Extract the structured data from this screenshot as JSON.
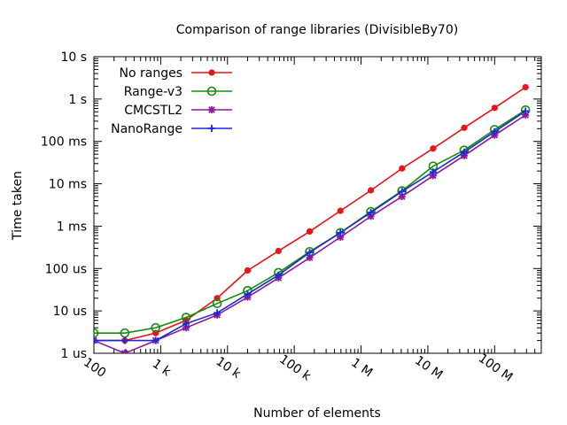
{
  "chart_data": {
    "type": "line",
    "title": "Comparison of range libraries (DivisibleBy70)",
    "xlabel": "Number of elements",
    "ylabel": "Time taken",
    "x_scale": "log",
    "y_scale": "log",
    "xlim": [
      100,
      500000000
    ],
    "ylim": [
      1e-06,
      10
    ],
    "grid": false,
    "legend_position": "top-left",
    "x_ticks": [
      {
        "value": 100,
        "label": "100"
      },
      {
        "value": 1000,
        "label": "1 k"
      },
      {
        "value": 10000,
        "label": "10 k"
      },
      {
        "value": 100000,
        "label": "100 k"
      },
      {
        "value": 1000000,
        "label": "1 M"
      },
      {
        "value": 10000000,
        "label": "10 M"
      },
      {
        "value": 100000000,
        "label": "100 M"
      }
    ],
    "y_ticks": [
      {
        "value": 1e-06,
        "label": "1 us"
      },
      {
        "value": 1e-05,
        "label": "10 us"
      },
      {
        "value": 0.0001,
        "label": "100 us"
      },
      {
        "value": 0.001,
        "label": "1 ms"
      },
      {
        "value": 0.01,
        "label": "10 ms"
      },
      {
        "value": 0.1,
        "label": "100 ms"
      },
      {
        "value": 1,
        "label": "1  s"
      },
      {
        "value": 10,
        "label": "10  s"
      }
    ],
    "x": [
      100,
      290,
      840,
      2400,
      7000,
      20000,
      58000,
      170000,
      490000,
      1400000,
      4100000,
      12000000,
      35000000,
      100000000,
      290000000
    ],
    "series": [
      {
        "name": "No ranges",
        "color": "#e8141a",
        "marker": "filled-circle",
        "values": [
          2e-06,
          2e-06,
          3e-06,
          6e-06,
          2e-05,
          9e-05,
          0.00026,
          0.00075,
          0.0023,
          0.007,
          0.023,
          0.068,
          0.21,
          0.62,
          1.9
        ]
      },
      {
        "name": "Range-v3",
        "color": "#168c10",
        "marker": "open-circle",
        "values": [
          3e-06,
          3e-06,
          4e-06,
          7e-06,
          1.5e-05,
          3e-05,
          8e-05,
          0.00025,
          0.0007,
          0.0022,
          0.0068,
          0.026,
          0.062,
          0.19,
          0.55
        ]
      },
      {
        "name": "CMCSTL2",
        "color": "#8b1a9c",
        "marker": "star",
        "values": [
          2e-06,
          1e-06,
          2e-06,
          4e-06,
          8e-06,
          2.1e-05,
          6e-05,
          0.00018,
          0.00055,
          0.0017,
          0.005,
          0.0155,
          0.046,
          0.14,
          0.42
        ]
      },
      {
        "name": "NanoRange",
        "color": "#1a2ad8",
        "marker": "plus",
        "values": [
          2e-06,
          2e-06,
          2e-06,
          5e-06,
          9e-06,
          2.5e-05,
          7e-05,
          0.00024,
          0.0007,
          0.0021,
          0.0066,
          0.019,
          0.056,
          0.17,
          0.52
        ]
      }
    ]
  }
}
